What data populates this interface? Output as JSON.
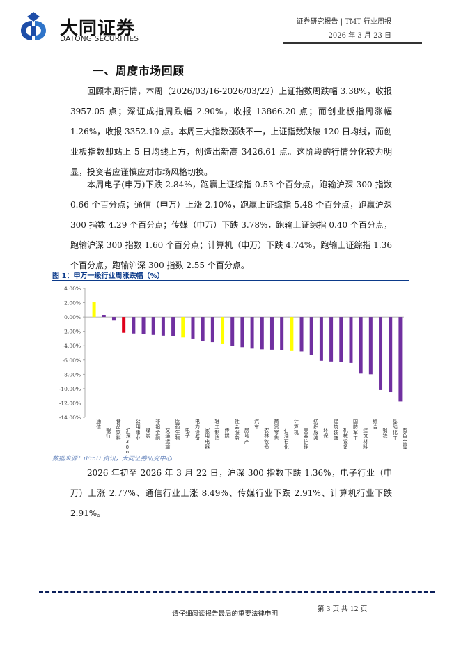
{
  "header": {
    "logo_cn": "大同证券",
    "logo_en": "DATONG SECURITIES",
    "report_type": "证券研究报告 | TMT 行业周报",
    "date": "2026 年 3 月 23 日"
  },
  "section_title": "一、周度市场回顾",
  "paragraphs": [
    "回顾本周行情，本周（2026/03/16-2026/03/22）上证指数周跌幅 3.38%，收报 3957.05 点；深证成指周跌幅 2.90%，收报 13866.20 点；而创业板指周涨幅 1.26%，收报 3352.10 点。本周三大指数涨跌不一，上证指数跌破 120 日均线，而创业板指数却站上 5 日均线上方，创造出新高 3426.61 点。这阶段的行情分化较为明显，投资者应谨慎应对市场风格切换。",
    "本周电子(申万)下跌 2.84%，跑赢上证综指 0.53 个百分点，跑输沪深 300 指数 0.66 个百分点；通信（申万）上涨 2.10%，跑赢上证综指 5.48 个百分点，跑赢沪深 300 指数 4.29 个百分点；传媒（申万）下跌 3.78%，跑输上证综指 0.40 个百分点，跑输沪深 300 指数 1.60 个百分点；计算机（申万）下跌 4.74%，跑输上证综指 1.36 个百分点，跑输沪深 300 指数 2.55 个百分点。",
    "2026 年初至 2026 年 3 月 22 日，沪深 300 指数下跌 1.36%，电子行业（申万）上涨 2.77%、通信行业上涨 8.49%、传媒行业下跌 2.91%、计算机行业下跌 2.91%。"
  ],
  "figure": {
    "title": "图 1：申万一级行业周涨跌幅（%）",
    "source": "数据来源：iFinD 资讯，大同证券研究中心"
  },
  "chart_data": {
    "type": "bar",
    "categories": [
      "通信",
      "银行",
      "食品饮料",
      "沪深300",
      "公用事业",
      "煤炭",
      "非银金融",
      "交通运输",
      "医药生物",
      "电子",
      "电力设备",
      "家用电器",
      "轻工制造",
      "传媒",
      "社会服务",
      "房地产",
      "汽车",
      "农林牧渔",
      "商贸零售",
      "石油石化",
      "计算机",
      "美容护理",
      "纺织服装",
      "环保",
      "建筑装饰",
      "机械设备",
      "国防军工",
      "建筑材料",
      "综合",
      "钢铁",
      "基础化工",
      "有色金属"
    ],
    "values": [
      2.1,
      0.3,
      -0.5,
      -2.2,
      -2.3,
      -2.4,
      -2.5,
      -2.6,
      -2.7,
      -2.84,
      -3.0,
      -3.3,
      -3.5,
      -3.78,
      -4.0,
      -4.2,
      -4.4,
      -4.5,
      -4.55,
      -4.6,
      -4.74,
      -4.8,
      -5.3,
      -6.1,
      -6.2,
      -6.3,
      -6.4,
      -7.9,
      -8.0,
      -10.2,
      -10.5,
      -11.8
    ],
    "colors": [
      "#ffff00",
      "#7030a0",
      "#7030a0",
      "#e0001b",
      "#7030a0",
      "#7030a0",
      "#7030a0",
      "#7030a0",
      "#7030a0",
      "#ffff00",
      "#7030a0",
      "#7030a0",
      "#7030a0",
      "#ffff00",
      "#7030a0",
      "#7030a0",
      "#7030a0",
      "#7030a0",
      "#7030a0",
      "#7030a0",
      "#ffff00",
      "#7030a0",
      "#7030a0",
      "#7030a0",
      "#7030a0",
      "#7030a0",
      "#7030a0",
      "#7030a0",
      "#7030a0",
      "#7030a0",
      "#7030a0",
      "#7030a0"
    ],
    "yticks": [
      "4.00%",
      "2.00%",
      "0.00%",
      "-2.00%",
      "-4.00%",
      "-6.00%",
      "-8.00%",
      "-10.00%",
      "-12.00%",
      "-14.00%"
    ],
    "ylim": [
      -14,
      4
    ],
    "grid": false
  },
  "footer": {
    "disclaimer": "请仔细阅读报告最后的重要法律申明",
    "page": "第 3 页 共 12 页"
  }
}
